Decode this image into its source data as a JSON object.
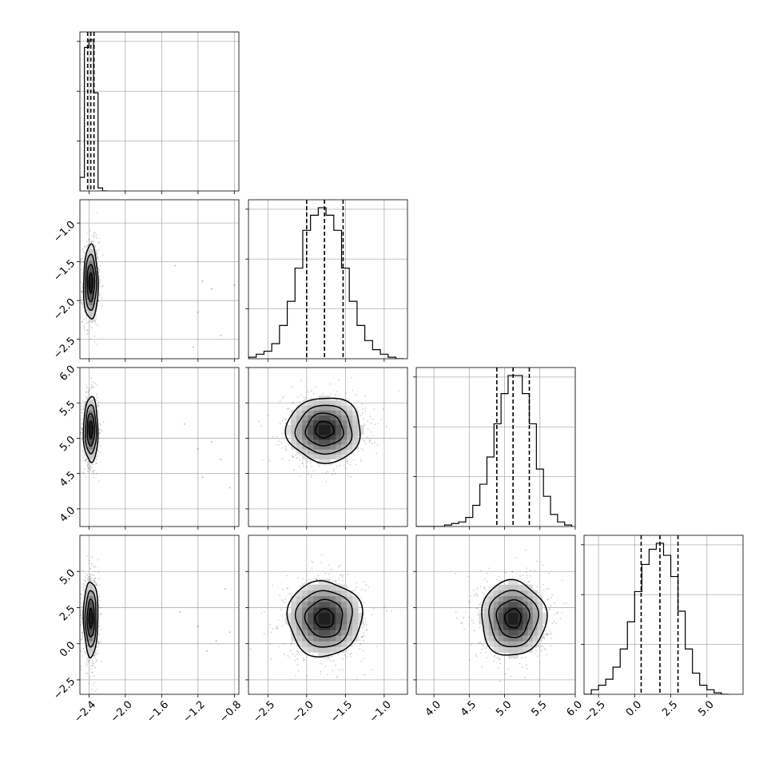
{
  "chart_data": {
    "type": "corner",
    "grid": true,
    "parameters": [
      {
        "index": 0,
        "name": "",
        "range": [
          -2.5,
          -0.75
        ],
        "ticks": [
          -2.4,
          -2.0,
          -1.6,
          -1.2,
          -0.8
        ],
        "tick_labels": [
          "−2.4",
          "−2.0",
          "−1.6",
          "−1.2",
          "−0.8"
        ],
        "median": -2.38,
        "q16": -2.415,
        "q84": -2.345,
        "sigma": 0.04
      },
      {
        "index": 1,
        "name": "",
        "range": [
          -2.75,
          -0.7
        ],
        "ticks": [
          -2.5,
          -2.0,
          -1.5,
          -1.0
        ],
        "tick_labels": [
          "−2.5",
          "−2.0",
          "−1.5",
          "−1.0"
        ],
        "median": -1.77,
        "q16": -2.0,
        "q84": -1.53,
        "sigma": 0.24
      },
      {
        "index": 2,
        "name": "",
        "range": [
          3.75,
          6.0
        ],
        "ticks": [
          4.0,
          4.5,
          5.0,
          5.5,
          6.0
        ],
        "tick_labels": [
          "4.0",
          "4.5",
          "5.0",
          "5.5",
          "6.0"
        ],
        "median": 5.12,
        "q16": 4.89,
        "q84": 5.35,
        "sigma": 0.23
      },
      {
        "index": 3,
        "name": "",
        "range": [
          -3.5,
          7.5
        ],
        "ticks": [
          -2.5,
          0.0,
          2.5,
          5.0
        ],
        "tick_labels": [
          "−2.5",
          "0.0",
          "2.5",
          "5.0"
        ],
        "median": 1.75,
        "q16": 0.45,
        "q84": 3.0,
        "sigma": 1.3
      }
    ],
    "diagonal_histograms": [
      {
        "param": 0,
        "bin_edges": [
          -2.5,
          -2.45,
          -2.4,
          -2.35,
          -2.3,
          -2.25,
          -2.2
        ],
        "counts": [
          0.09,
          0.95,
          1.0,
          0.65,
          0.02,
          0.0
        ]
      },
      {
        "param": 1,
        "bin_edges": [
          -2.75,
          -2.65,
          -2.55,
          -2.45,
          -2.35,
          -2.25,
          -2.15,
          -2.05,
          -1.95,
          -1.85,
          -1.75,
          -1.65,
          -1.55,
          -1.45,
          -1.35,
          -1.25,
          -1.15,
          -1.05,
          -0.95,
          -0.85,
          -0.75
        ],
        "counts": [
          0.01,
          0.03,
          0.05,
          0.1,
          0.22,
          0.38,
          0.6,
          0.85,
          0.95,
          1.0,
          0.95,
          0.85,
          0.6,
          0.38,
          0.22,
          0.12,
          0.06,
          0.03,
          0.01,
          0.0
        ]
      },
      {
        "param": 2,
        "bin_edges": [
          3.75,
          3.85,
          3.95,
          4.05,
          4.15,
          4.25,
          4.35,
          4.45,
          4.55,
          4.65,
          4.75,
          4.85,
          4.95,
          5.05,
          5.15,
          5.25,
          5.35,
          5.45,
          5.55,
          5.65,
          5.75,
          5.85,
          5.95
        ],
        "counts": [
          0.0,
          0.0,
          0.0,
          0.0,
          0.01,
          0.02,
          0.03,
          0.06,
          0.14,
          0.28,
          0.46,
          0.68,
          0.88,
          1.0,
          1.0,
          0.88,
          0.68,
          0.38,
          0.2,
          0.08,
          0.03,
          0.01
        ]
      },
      {
        "param": 3,
        "bin_edges": [
          -3.5,
          -3.0,
          -2.5,
          -2.0,
          -1.5,
          -1.0,
          -0.5,
          0.0,
          0.5,
          1.0,
          1.5,
          2.0,
          2.5,
          3.0,
          3.5,
          4.0,
          4.5,
          5.0,
          5.5,
          6.0,
          6.5
        ],
        "counts": [
          0.0,
          0.03,
          0.06,
          0.1,
          0.18,
          0.3,
          0.48,
          0.68,
          0.86,
          0.96,
          1.0,
          0.92,
          0.78,
          0.55,
          0.3,
          0.14,
          0.06,
          0.03,
          0.01,
          0.0
        ]
      }
    ],
    "pair_panels": [
      {
        "x_param": 0,
        "y_param": 1
      },
      {
        "x_param": 0,
        "y_param": 2
      },
      {
        "x_param": 1,
        "y_param": 2
      },
      {
        "x_param": 0,
        "y_param": 3
      },
      {
        "x_param": 1,
        "y_param": 3
      },
      {
        "x_param": 2,
        "y_param": 3
      }
    ],
    "contour_levels_sigma": [
      0.5,
      1.0,
      1.5,
      2.0
    ],
    "outlier_points": [
      {
        "x_param": 0,
        "y_param": 1,
        "points": [
          [
            -1.15,
            -1.75
          ],
          [
            -1.05,
            -1.85
          ],
          [
            -1.2,
            -2.15
          ],
          [
            -0.95,
            -2.45
          ],
          [
            -1.45,
            -1.55
          ],
          [
            -0.8,
            -1.8
          ],
          [
            -1.25,
            -2.6
          ]
        ]
      },
      {
        "x_param": 0,
        "y_param": 2,
        "points": [
          [
            -1.2,
            4.85
          ],
          [
            -1.05,
            4.95
          ],
          [
            -0.85,
            4.3
          ],
          [
            -1.35,
            5.2
          ],
          [
            -1.15,
            4.45
          ],
          [
            -0.95,
            4.7
          ]
        ]
      },
      {
        "x_param": 0,
        "y_param": 3,
        "points": [
          [
            -1.2,
            1.2
          ],
          [
            -1.0,
            0.2
          ],
          [
            -0.85,
            0.8
          ],
          [
            -1.4,
            2.2
          ],
          [
            -1.1,
            -0.5
          ],
          [
            -0.9,
            3.8
          ]
        ]
      }
    ]
  }
}
